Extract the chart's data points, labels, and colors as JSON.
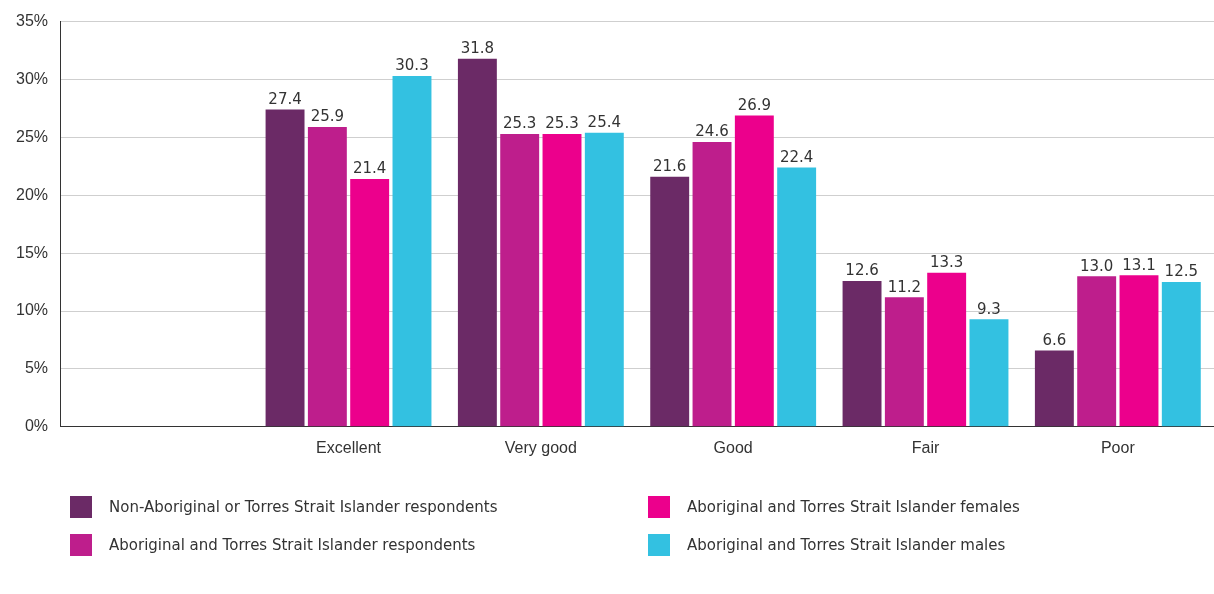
{
  "chart_data": {
    "type": "bar",
    "categories": [
      null,
      "Excellent",
      "Very good",
      "Good",
      "Fair",
      "Poor"
    ],
    "series": [
      {
        "name": "Non-Aboriginal or Torres Strait Islander respondents",
        "color": "#6b2a66",
        "values": [
          null,
          27.4,
          31.8,
          21.6,
          12.6,
          6.6
        ],
        "value_labels": [
          null,
          "27.4",
          "31.8",
          "21.6",
          "12.6",
          "6.6"
        ]
      },
      {
        "name": "Aboriginal and Torres Strait Islander respondents",
        "color": "#be1e8c",
        "values": [
          null,
          25.9,
          25.3,
          24.6,
          11.2,
          13.0
        ],
        "value_labels": [
          null,
          "25.9",
          "25.3",
          "24.6",
          "11.2",
          "13.0"
        ]
      },
      {
        "name": "Aboriginal and Torres Strait Islander females",
        "color": "#ec008c",
        "values": [
          null,
          21.4,
          25.3,
          26.9,
          13.3,
          13.1
        ],
        "value_labels": [
          null,
          "21.4",
          "25.3",
          "26.9",
          "13.3",
          "13.1"
        ]
      },
      {
        "name": "Aboriginal and Torres Strait Islander males",
        "color": "#33c1e1",
        "values": [
          null,
          30.3,
          25.4,
          22.4,
          9.3,
          12.5
        ],
        "value_labels": [
          null,
          "30.3",
          "25.4",
          "22.4",
          "9.3",
          "12.5"
        ]
      }
    ],
    "ylim": [
      0,
      35
    ],
    "yticks": [
      {
        "value": 0,
        "label": "0%"
      },
      {
        "value": 5,
        "label": "5%"
      },
      {
        "value": 10,
        "label": "10%"
      },
      {
        "value": 15,
        "label": "15%"
      },
      {
        "value": 20,
        "label": "20%"
      },
      {
        "value": 25,
        "label": "25%"
      },
      {
        "value": 30,
        "label": "30%"
      },
      {
        "value": 35,
        "label": "35%"
      }
    ],
    "grid": "y",
    "legend": "bottom"
  }
}
